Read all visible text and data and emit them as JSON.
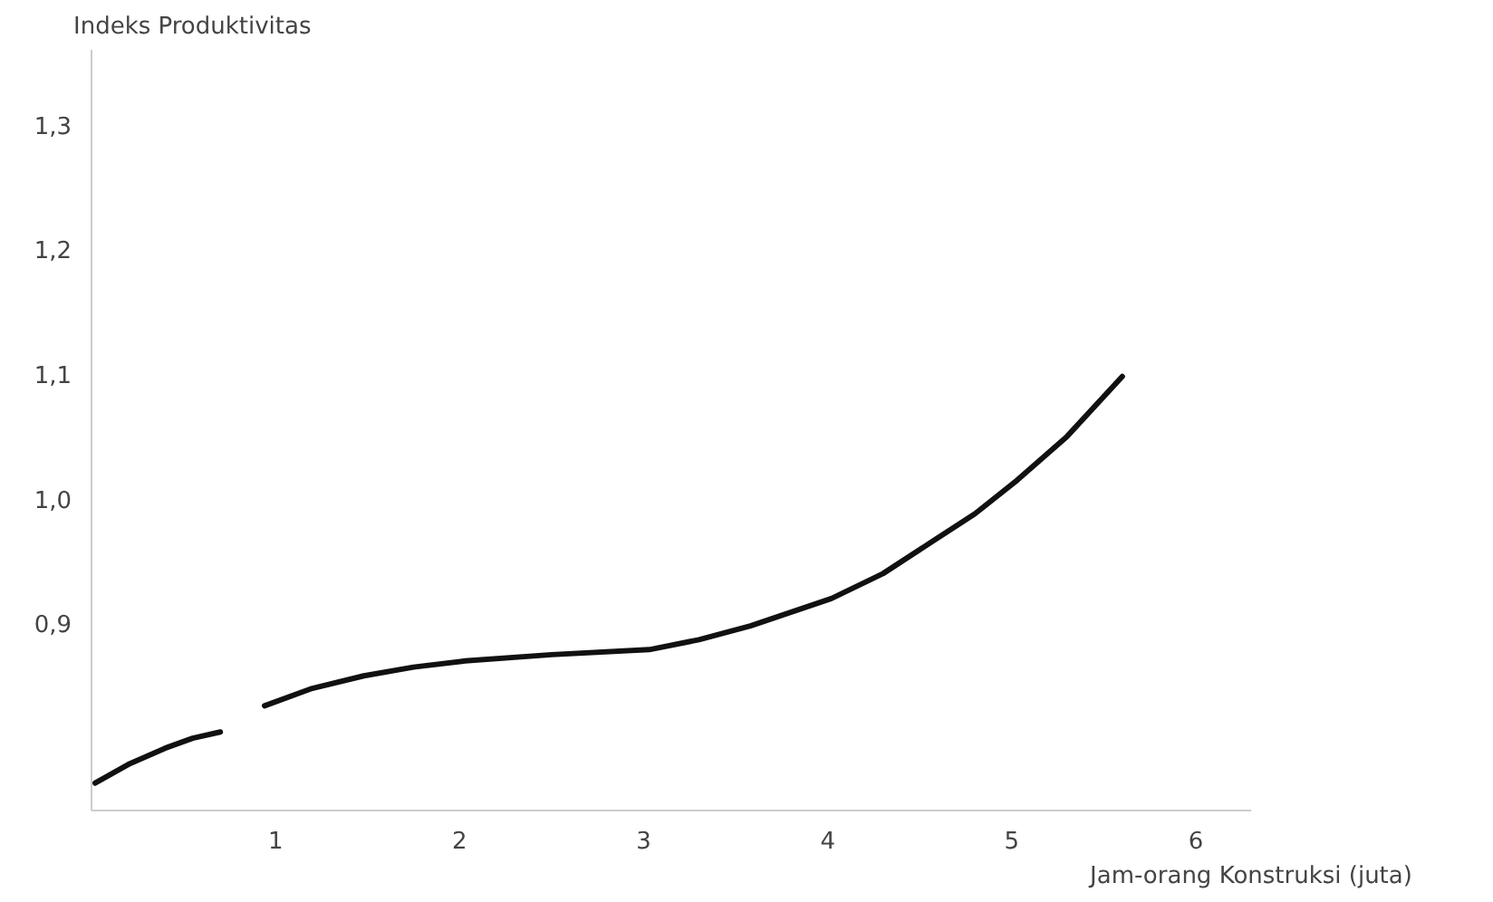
{
  "chart_data": {
    "type": "line",
    "ylabel": "Indeks Produktivitas",
    "xlabel": "Jam-orang Konstruksi (juta)",
    "x": [
      0.02,
      0.2,
      0.4,
      0.55,
      0.7,
      0.8,
      0.94,
      1.2,
      1.48,
      1.75,
      2.03,
      2.5,
      3.03,
      3.3,
      3.58,
      4.02,
      4.3,
      4.55,
      4.8,
      5.03,
      5.3,
      5.6
    ],
    "series": [
      {
        "color": "#111111",
        "values": [
          0.772,
          0.787,
          0.8,
          0.808,
          0.813,
          null,
          0.834,
          0.848,
          0.858,
          0.865,
          0.87,
          0.875,
          0.879,
          0.887,
          0.898,
          0.92,
          0.94,
          0.964,
          0.988,
          1.015,
          1.05,
          1.098
        ]
      }
    ],
    "xlim": [
      0,
      6.3
    ],
    "ylim": [
      0.75,
      1.36
    ],
    "xticks": [
      {
        "value": 1,
        "label": "1"
      },
      {
        "value": 2,
        "label": "2"
      },
      {
        "value": 3,
        "label": "3"
      },
      {
        "value": 4,
        "label": "4"
      },
      {
        "value": 5,
        "label": "5"
      },
      {
        "value": 6,
        "label": "6"
      }
    ],
    "yticks": [
      {
        "value": 0.9,
        "label": "0,9"
      },
      {
        "value": 1.0,
        "label": "1,0"
      },
      {
        "value": 1.1,
        "label": "1,1"
      },
      {
        "value": 1.2,
        "label": "1,2"
      },
      {
        "value": 1.3,
        "label": "1,3"
      }
    ],
    "grid": false,
    "marker": "none",
    "line_style": "solid"
  }
}
